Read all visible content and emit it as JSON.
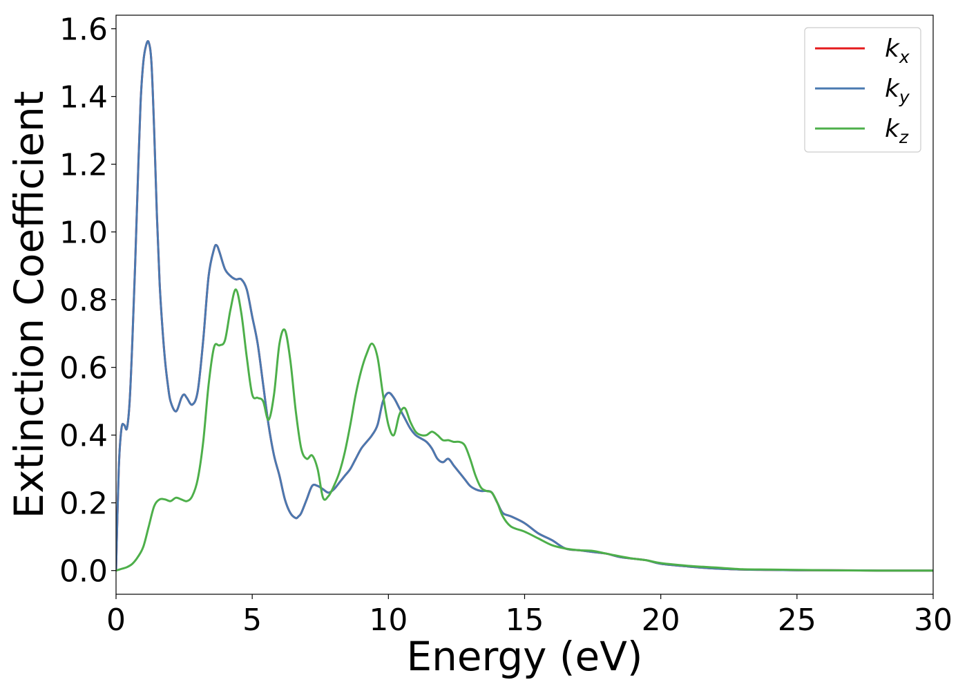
{
  "chart_data": {
    "type": "line",
    "xlabel": "Energy (eV)",
    "ylabel": "Extinction Coefficient",
    "xlim": [
      0,
      30
    ],
    "ylim": [
      -0.07,
      1.64
    ],
    "xticks": [
      0,
      5,
      10,
      15,
      20,
      25,
      30
    ],
    "xtick_labels": [
      "0",
      "5",
      "10",
      "15",
      "20",
      "25",
      "30"
    ],
    "yticks": [
      0.0,
      0.2,
      0.4,
      0.6,
      0.8,
      1.0,
      1.2,
      1.4,
      1.6
    ],
    "ytick_labels": [
      "0.0",
      "0.2",
      "0.4",
      "0.6",
      "0.8",
      "1.0",
      "1.2",
      "1.4",
      "1.6"
    ],
    "grid": false,
    "legend_position": "top-right",
    "series": [
      {
        "name": "k_x",
        "label_main": "k",
        "label_sub": "x",
        "color": "#e41a1c",
        "x": [
          0,
          0.1,
          0.2,
          0.3,
          0.4,
          0.5,
          0.6,
          0.7,
          0.8,
          0.9,
          1.0,
          1.1,
          1.2,
          1.3,
          1.4,
          1.5,
          1.6,
          1.7,
          1.8,
          1.9,
          2.0,
          2.2,
          2.4,
          2.5,
          2.6,
          2.8,
          3.0,
          3.2,
          3.4,
          3.6,
          3.7,
          3.8,
          4.0,
          4.2,
          4.4,
          4.6,
          4.8,
          5.0,
          5.2,
          5.4,
          5.6,
          5.8,
          6.0,
          6.2,
          6.4,
          6.6,
          6.7,
          6.8,
          7.0,
          7.2,
          7.4,
          7.6,
          7.8,
          8.0,
          8.2,
          8.4,
          8.6,
          8.8,
          9.0,
          9.2,
          9.4,
          9.6,
          9.8,
          10.0,
          10.2,
          10.4,
          10.6,
          10.8,
          11.0,
          11.2,
          11.4,
          11.6,
          11.8,
          12.0,
          12.2,
          12.4,
          12.6,
          12.8,
          13.0,
          13.2,
          13.4,
          13.6,
          13.8,
          14.0,
          14.2,
          14.5,
          15.0,
          15.5,
          16.0,
          16.5,
          17.0,
          17.5,
          18.0,
          18.5,
          19.0,
          19.5,
          20.0,
          21.0,
          22.0,
          23.0,
          24.0,
          25.0,
          26.0,
          28.0,
          30.0
        ],
        "y": [
          0.0,
          0.3,
          0.42,
          0.43,
          0.42,
          0.5,
          0.68,
          0.9,
          1.15,
          1.38,
          1.5,
          1.55,
          1.56,
          1.5,
          1.3,
          1.05,
          0.85,
          0.72,
          0.62,
          0.55,
          0.5,
          0.47,
          0.51,
          0.52,
          0.51,
          0.49,
          0.53,
          0.68,
          0.87,
          0.95,
          0.96,
          0.94,
          0.89,
          0.87,
          0.86,
          0.86,
          0.83,
          0.75,
          0.67,
          0.55,
          0.43,
          0.34,
          0.28,
          0.21,
          0.17,
          0.155,
          0.16,
          0.17,
          0.21,
          0.25,
          0.25,
          0.24,
          0.23,
          0.24,
          0.26,
          0.28,
          0.3,
          0.33,
          0.36,
          0.38,
          0.4,
          0.43,
          0.5,
          0.525,
          0.51,
          0.48,
          0.45,
          0.42,
          0.4,
          0.39,
          0.38,
          0.36,
          0.33,
          0.32,
          0.33,
          0.31,
          0.29,
          0.27,
          0.25,
          0.24,
          0.235,
          0.235,
          0.23,
          0.2,
          0.17,
          0.16,
          0.14,
          0.11,
          0.09,
          0.065,
          0.06,
          0.055,
          0.05,
          0.04,
          0.035,
          0.03,
          0.02,
          0.012,
          0.006,
          0.003,
          0.002,
          0.001,
          0.001,
          0.0,
          0.0
        ]
      },
      {
        "name": "k_y",
        "label_main": "k",
        "label_sub": "y",
        "color": "#4a79b0",
        "x": [
          0,
          0.1,
          0.2,
          0.3,
          0.4,
          0.5,
          0.6,
          0.7,
          0.8,
          0.9,
          1.0,
          1.1,
          1.2,
          1.3,
          1.4,
          1.5,
          1.6,
          1.7,
          1.8,
          1.9,
          2.0,
          2.2,
          2.4,
          2.5,
          2.6,
          2.8,
          3.0,
          3.2,
          3.4,
          3.6,
          3.7,
          3.8,
          4.0,
          4.2,
          4.4,
          4.6,
          4.8,
          5.0,
          5.2,
          5.4,
          5.6,
          5.8,
          6.0,
          6.2,
          6.4,
          6.6,
          6.7,
          6.8,
          7.0,
          7.2,
          7.4,
          7.6,
          7.8,
          8.0,
          8.2,
          8.4,
          8.6,
          8.8,
          9.0,
          9.2,
          9.4,
          9.6,
          9.8,
          10.0,
          10.2,
          10.4,
          10.6,
          10.8,
          11.0,
          11.2,
          11.4,
          11.6,
          11.8,
          12.0,
          12.2,
          12.4,
          12.6,
          12.8,
          13.0,
          13.2,
          13.4,
          13.6,
          13.8,
          14.0,
          14.2,
          14.5,
          15.0,
          15.5,
          16.0,
          16.5,
          17.0,
          17.5,
          18.0,
          18.5,
          19.0,
          19.5,
          20.0,
          21.0,
          22.0,
          23.0,
          24.0,
          25.0,
          26.0,
          28.0,
          30.0
        ],
        "y": [
          0.0,
          0.3,
          0.42,
          0.43,
          0.42,
          0.5,
          0.68,
          0.9,
          1.15,
          1.38,
          1.5,
          1.55,
          1.56,
          1.5,
          1.3,
          1.05,
          0.85,
          0.72,
          0.62,
          0.55,
          0.5,
          0.47,
          0.51,
          0.52,
          0.51,
          0.49,
          0.53,
          0.68,
          0.87,
          0.95,
          0.96,
          0.94,
          0.89,
          0.87,
          0.86,
          0.86,
          0.83,
          0.75,
          0.67,
          0.55,
          0.43,
          0.34,
          0.28,
          0.21,
          0.17,
          0.155,
          0.16,
          0.17,
          0.21,
          0.25,
          0.25,
          0.24,
          0.23,
          0.24,
          0.26,
          0.28,
          0.3,
          0.33,
          0.36,
          0.38,
          0.4,
          0.43,
          0.5,
          0.525,
          0.51,
          0.48,
          0.45,
          0.42,
          0.4,
          0.39,
          0.38,
          0.36,
          0.33,
          0.32,
          0.33,
          0.31,
          0.29,
          0.27,
          0.25,
          0.24,
          0.235,
          0.235,
          0.23,
          0.2,
          0.17,
          0.16,
          0.14,
          0.11,
          0.09,
          0.065,
          0.06,
          0.055,
          0.05,
          0.04,
          0.035,
          0.03,
          0.02,
          0.012,
          0.006,
          0.003,
          0.002,
          0.001,
          0.001,
          0.0,
          0.0
        ]
      },
      {
        "name": "k_z",
        "label_main": "k",
        "label_sub": "z",
        "color": "#4daf4a",
        "x": [
          0,
          0.2,
          0.4,
          0.6,
          0.8,
          1.0,
          1.2,
          1.4,
          1.6,
          1.8,
          2.0,
          2.2,
          2.4,
          2.6,
          2.8,
          3.0,
          3.2,
          3.4,
          3.6,
          3.8,
          4.0,
          4.2,
          4.4,
          4.6,
          4.8,
          5.0,
          5.2,
          5.4,
          5.6,
          5.8,
          6.0,
          6.2,
          6.4,
          6.6,
          6.8,
          7.0,
          7.2,
          7.4,
          7.6,
          7.8,
          8.0,
          8.2,
          8.4,
          8.6,
          8.8,
          9.0,
          9.2,
          9.4,
          9.6,
          9.8,
          10.0,
          10.2,
          10.4,
          10.6,
          10.8,
          11.0,
          11.2,
          11.4,
          11.6,
          11.8,
          12.0,
          12.2,
          12.4,
          12.6,
          12.8,
          13.0,
          13.2,
          13.4,
          13.6,
          13.8,
          14.0,
          14.2,
          14.5,
          15.0,
          15.5,
          16.0,
          16.5,
          17.0,
          17.5,
          18.0,
          18.5,
          19.0,
          19.5,
          20.0,
          21.0,
          22.0,
          23.0,
          24.0,
          25.0,
          26.0,
          28.0,
          30.0
        ],
        "y": [
          0.0,
          0.005,
          0.01,
          0.02,
          0.04,
          0.07,
          0.13,
          0.19,
          0.21,
          0.21,
          0.205,
          0.215,
          0.21,
          0.205,
          0.22,
          0.27,
          0.38,
          0.55,
          0.66,
          0.665,
          0.68,
          0.77,
          0.83,
          0.76,
          0.63,
          0.52,
          0.51,
          0.5,
          0.445,
          0.52,
          0.67,
          0.71,
          0.62,
          0.47,
          0.36,
          0.33,
          0.34,
          0.3,
          0.215,
          0.22,
          0.25,
          0.29,
          0.35,
          0.43,
          0.52,
          0.59,
          0.64,
          0.67,
          0.63,
          0.52,
          0.43,
          0.4,
          0.46,
          0.48,
          0.44,
          0.41,
          0.4,
          0.4,
          0.41,
          0.4,
          0.385,
          0.385,
          0.38,
          0.38,
          0.37,
          0.33,
          0.28,
          0.245,
          0.235,
          0.23,
          0.2,
          0.16,
          0.13,
          0.115,
          0.095,
          0.075,
          0.065,
          0.06,
          0.058,
          0.05,
          0.042,
          0.035,
          0.03,
          0.022,
          0.014,
          0.009,
          0.004,
          0.003,
          0.002,
          0.001,
          0.0,
          0.0
        ]
      }
    ]
  }
}
